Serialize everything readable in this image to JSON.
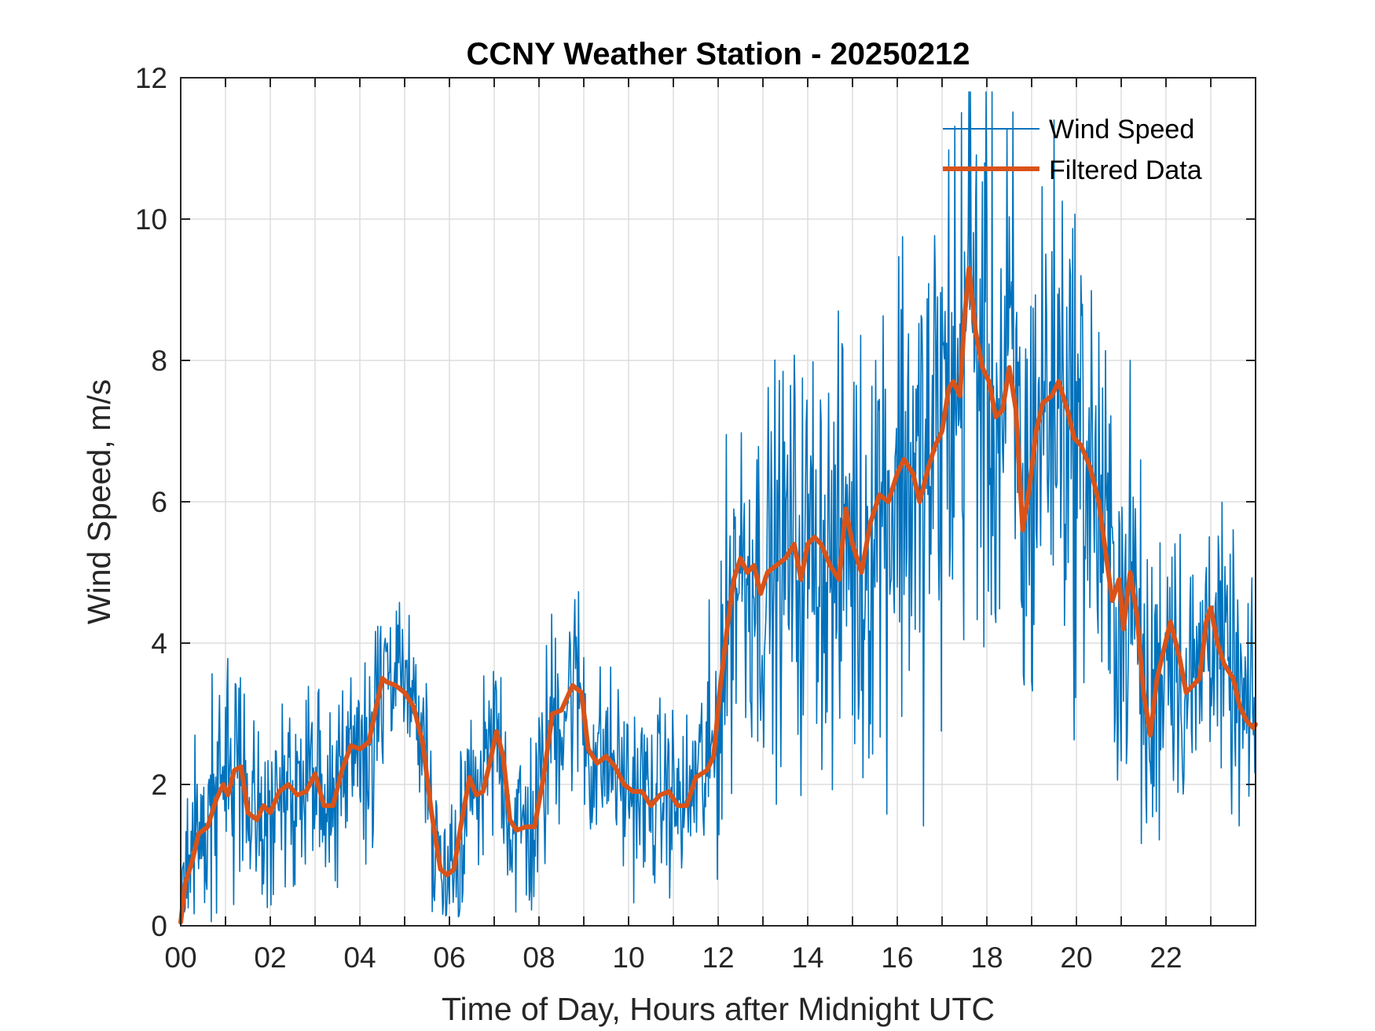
{
  "chart_data": {
    "type": "line",
    "title": "CCNY Weather Station - 20250212",
    "xlabel": "Time of Day, Hours after Midnight UTC",
    "ylabel": "Wind Speed, m/s",
    "xlim": [
      0,
      24
    ],
    "ylim": [
      0,
      12
    ],
    "grid": true,
    "legend_position": "top-right",
    "x_ticks": [
      0,
      2,
      4,
      6,
      8,
      10,
      12,
      14,
      16,
      18,
      20,
      22
    ],
    "x_tick_labels": [
      "00",
      "02",
      "04",
      "06",
      "08",
      "10",
      "12",
      "14",
      "16",
      "18",
      "20",
      "22"
    ],
    "x_minor_grid": [
      1,
      3,
      5,
      7,
      9,
      11,
      13,
      15,
      17,
      19,
      21,
      23
    ],
    "y_ticks": [
      0,
      2,
      4,
      6,
      8,
      10,
      12
    ],
    "y_tick_labels": [
      "0",
      "2",
      "4",
      "6",
      "8",
      "10",
      "12"
    ],
    "colors": {
      "wind": "#0072BD",
      "filtered": "#D95319",
      "axis": "#262626",
      "grid": "#DDDDDD"
    },
    "series": [
      {
        "name": "Wind Speed",
        "style": "thin",
        "note": "raw 1-minute samples, noisy; amplitude envelope listed per hour",
        "x": [
          0,
          0.5,
          1,
          1.5,
          2,
          2.5,
          3,
          3.5,
          4,
          4.5,
          5,
          5.5,
          6,
          6.5,
          7,
          7.5,
          8,
          8.5,
          9,
          9.5,
          10,
          10.5,
          11,
          11.5,
          12,
          12.5,
          13,
          13.5,
          14,
          14.5,
          15,
          15.5,
          16,
          16.5,
          17,
          17.5,
          18,
          18.5,
          19,
          19.5,
          20,
          20.5,
          21,
          21.5,
          22,
          22.5,
          23,
          23.5,
          24
        ],
        "amplitude": [
          1.0,
          1.1,
          1.4,
          1.1,
          1.0,
          1.0,
          1.0,
          1.0,
          1.1,
          1.2,
          0.9,
          1.1,
          0.9,
          1.1,
          1.2,
          1.1,
          1.2,
          1.3,
          1.2,
          1.0,
          1.0,
          1.0,
          1.0,
          1.0,
          1.8,
          2.0,
          2.0,
          2.2,
          2.2,
          2.4,
          2.5,
          2.7,
          2.9,
          3.0,
          3.2,
          3.3,
          3.2,
          3.0,
          2.9,
          2.8,
          2.7,
          2.5,
          2.2,
          2.0,
          1.8,
          1.6,
          1.5,
          1.4,
          1.4
        ]
      },
      {
        "name": "Filtered Data",
        "style": "thick",
        "x": [
          0,
          0.1,
          0.25,
          0.4,
          0.6,
          0.8,
          0.95,
          1.05,
          1.2,
          1.35,
          1.5,
          1.7,
          1.85,
          2.0,
          2.2,
          2.4,
          2.6,
          2.8,
          3.0,
          3.2,
          3.4,
          3.6,
          3.8,
          4.0,
          4.2,
          4.4,
          4.5,
          4.6,
          4.8,
          5.0,
          5.2,
          5.4,
          5.6,
          5.8,
          5.95,
          6.1,
          6.25,
          6.45,
          6.6,
          6.75,
          6.9,
          7.05,
          7.2,
          7.35,
          7.5,
          7.7,
          7.9,
          8.1,
          8.3,
          8.5,
          8.75,
          8.95,
          9.1,
          9.3,
          9.5,
          9.7,
          9.9,
          10.1,
          10.3,
          10.5,
          10.7,
          10.9,
          11.1,
          11.3,
          11.5,
          11.75,
          11.9,
          12.05,
          12.2,
          12.35,
          12.5,
          12.65,
          12.8,
          12.95,
          13.1,
          13.3,
          13.5,
          13.7,
          13.85,
          14.0,
          14.15,
          14.3,
          14.5,
          14.7,
          14.85,
          15.0,
          15.2,
          15.4,
          15.6,
          15.8,
          16.0,
          16.15,
          16.35,
          16.5,
          16.7,
          16.85,
          17.0,
          17.15,
          17.25,
          17.4,
          17.5,
          17.6,
          17.75,
          17.9,
          18.05,
          18.2,
          18.35,
          18.5,
          18.65,
          18.8,
          18.95,
          19.1,
          19.25,
          19.45,
          19.6,
          19.8,
          19.95,
          20.1,
          20.3,
          20.5,
          20.65,
          20.8,
          20.95,
          21.05,
          21.2,
          21.35,
          21.5,
          21.65,
          21.8,
          21.95,
          22.1,
          22.3,
          22.45,
          22.6,
          22.75,
          22.9,
          23.0,
          23.15,
          23.3,
          23.5,
          23.65,
          23.8,
          23.95,
          24.0
        ],
        "y": [
          0.05,
          0.6,
          0.9,
          1.3,
          1.4,
          1.8,
          2.0,
          1.85,
          2.2,
          2.25,
          1.6,
          1.5,
          1.7,
          1.6,
          1.9,
          2.0,
          1.85,
          1.9,
          2.15,
          1.7,
          1.7,
          2.2,
          2.55,
          2.5,
          2.6,
          3.2,
          3.5,
          3.45,
          3.4,
          3.3,
          3.1,
          2.6,
          1.6,
          0.8,
          0.72,
          0.8,
          1.4,
          2.1,
          1.85,
          1.9,
          2.3,
          2.75,
          2.4,
          1.5,
          1.35,
          1.4,
          1.4,
          2.1,
          3.0,
          3.05,
          3.4,
          3.3,
          2.5,
          2.3,
          2.4,
          2.25,
          2.0,
          1.9,
          1.9,
          1.7,
          1.85,
          1.9,
          1.7,
          1.7,
          2.1,
          2.2,
          2.4,
          3.4,
          4.2,
          4.9,
          5.2,
          5.0,
          5.1,
          4.7,
          5.0,
          5.1,
          5.2,
          5.4,
          4.9,
          5.4,
          5.5,
          5.4,
          5.1,
          4.9,
          5.9,
          5.4,
          5.0,
          5.7,
          6.1,
          6.0,
          6.4,
          6.6,
          6.4,
          6.0,
          6.5,
          6.8,
          7.0,
          7.6,
          7.7,
          7.5,
          8.6,
          9.3,
          8.4,
          7.9,
          7.7,
          7.2,
          7.3,
          7.9,
          7.3,
          5.6,
          6.2,
          7.0,
          7.4,
          7.5,
          7.7,
          7.3,
          6.9,
          6.8,
          6.5,
          6.0,
          5.3,
          4.6,
          4.9,
          4.2,
          5.0,
          4.4,
          3.3,
          2.7,
          3.5,
          3.9,
          4.3,
          3.8,
          3.3,
          3.4,
          3.5,
          4.3,
          4.5,
          4.0,
          3.7,
          3.5,
          3.1,
          2.9,
          2.8,
          2.85
        ]
      }
    ]
  }
}
